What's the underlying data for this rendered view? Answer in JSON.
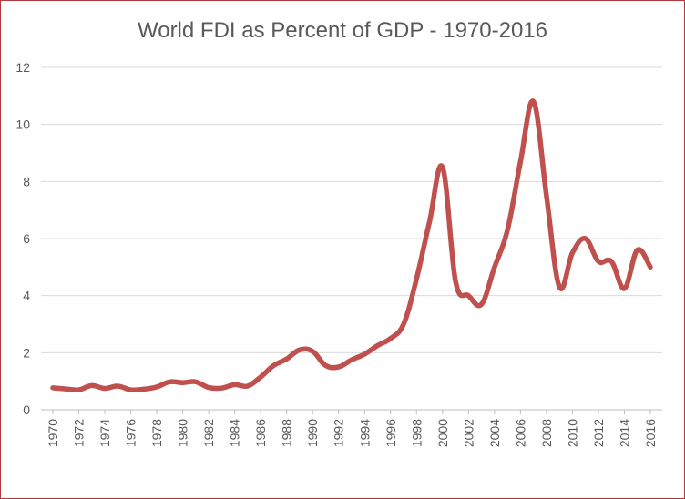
{
  "chart_data": {
    "type": "line",
    "title": "World FDI as Percent of GDP - 1970-2016",
    "xlabel": "",
    "ylabel": "",
    "ylim": [
      0,
      12
    ],
    "yticks": [
      0,
      2,
      4,
      6,
      8,
      10,
      12
    ],
    "xticks": [
      1970,
      1972,
      1974,
      1976,
      1978,
      1980,
      1982,
      1984,
      1986,
      1988,
      1990,
      1992,
      1994,
      1996,
      1998,
      2000,
      2002,
      2004,
      2006,
      2008,
      2010,
      2012,
      2014,
      2016
    ],
    "grid": true,
    "legend": "none",
    "series": [
      {
        "color": "#c0504d",
        "x": [
          1970,
          1971,
          1972,
          1973,
          1974,
          1975,
          1976,
          1977,
          1978,
          1979,
          1980,
          1981,
          1982,
          1983,
          1984,
          1985,
          1986,
          1987,
          1988,
          1989,
          1990,
          1991,
          1992,
          1993,
          1994,
          1995,
          1996,
          1997,
          1998,
          1999,
          2000,
          2001,
          2002,
          2003,
          2004,
          2005,
          2006,
          2007,
          2008,
          2009,
          2010,
          2011,
          2012,
          2013,
          2014,
          2015,
          2016
        ],
        "values": [
          0.77,
          0.73,
          0.7,
          0.85,
          0.75,
          0.83,
          0.7,
          0.72,
          0.8,
          0.98,
          0.95,
          0.98,
          0.78,
          0.76,
          0.88,
          0.83,
          1.15,
          1.55,
          1.78,
          2.1,
          2.05,
          1.55,
          1.5,
          1.75,
          1.95,
          2.25,
          2.5,
          3.0,
          4.6,
          6.6,
          8.5,
          4.5,
          4.0,
          3.7,
          5.0,
          6.3,
          8.7,
          10.8,
          7.5,
          4.3,
          5.5,
          6.0,
          5.2,
          5.2,
          4.25,
          5.6,
          5.0
        ]
      }
    ]
  }
}
